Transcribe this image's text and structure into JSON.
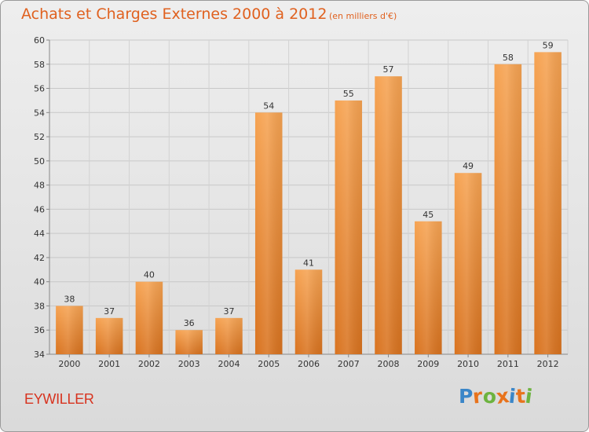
{
  "chart_data": {
    "type": "bar",
    "title": "Achats et Charges Externes 2000 à 2012",
    "subtitle": "(en milliers d'€)",
    "categories": [
      "2000",
      "2001",
      "2002",
      "2003",
      "2004",
      "2005",
      "2006",
      "2007",
      "2008",
      "2009",
      "2010",
      "2011",
      "2012"
    ],
    "values": [
      38,
      37,
      40,
      36,
      37,
      54,
      41,
      55,
      57,
      45,
      49,
      58,
      59
    ],
    "ylim": [
      34,
      60
    ],
    "yticks": [
      34,
      36,
      38,
      40,
      42,
      44,
      46,
      48,
      50,
      52,
      54,
      56,
      58,
      60
    ],
    "grid": true,
    "bar_color_top": "#f6a352",
    "bar_color_bottom": "#d9731f",
    "xlabel": "",
    "ylabel": ""
  },
  "location": "EYWILLER",
  "logo": {
    "text": "Proxiti",
    "letters": [
      {
        "ch": "P",
        "color": "#3a86c8"
      },
      {
        "ch": "r",
        "color": "#e8731c"
      },
      {
        "ch": "o",
        "color": "#6db33f"
      },
      {
        "ch": "x",
        "color": "#e8731c"
      },
      {
        "ch": "i",
        "color": "#3a86c8"
      },
      {
        "ch": "t",
        "color": "#e8731c"
      },
      {
        "ch": "i",
        "color": "#6db33f"
      }
    ]
  }
}
